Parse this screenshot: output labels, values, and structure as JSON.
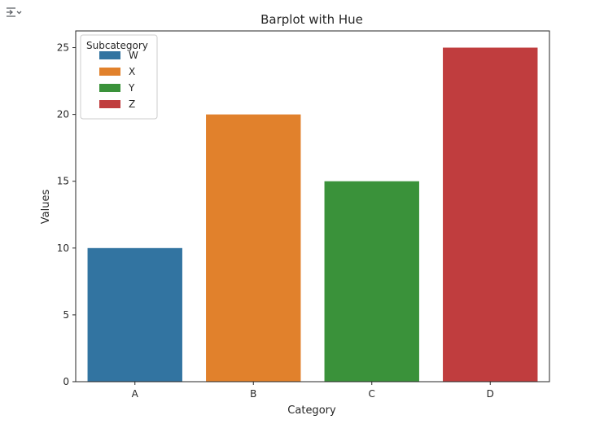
{
  "toolbar": {
    "output_toggle_icon": "collapse-output-icon"
  },
  "colors": {
    "W": "#3274a1",
    "X": "#e1812c",
    "Y": "#3a923a",
    "Z": "#c03d3e"
  },
  "chart_data": {
    "type": "bar",
    "title": "Barplot with Hue",
    "xlabel": "Category",
    "ylabel": "Values",
    "categories": [
      "A",
      "B",
      "C",
      "D"
    ],
    "hue": [
      "W",
      "X",
      "Y",
      "Z"
    ],
    "values": [
      10,
      20,
      15,
      25
    ],
    "ylim": [
      0,
      26.25
    ],
    "yticks": [
      0,
      5,
      10,
      15,
      20,
      25
    ],
    "grid": false,
    "legend": {
      "title": "Subcategory",
      "placement": "top-left",
      "entries": [
        "W",
        "X",
        "Y",
        "Z"
      ]
    }
  }
}
